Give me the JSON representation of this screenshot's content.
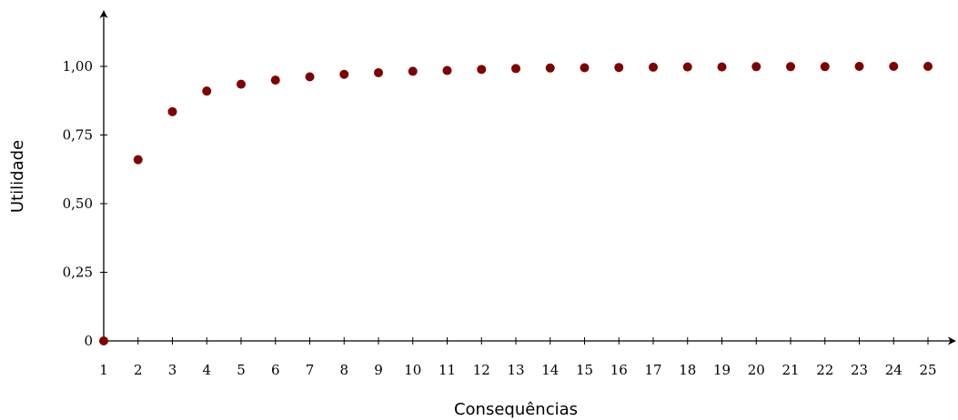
{
  "chart_data": {
    "type": "scatter",
    "title": "",
    "xlabel": "Consequências",
    "ylabel": "Utilidade",
    "x": [
      1,
      2,
      3,
      4,
      5,
      6,
      7,
      8,
      9,
      10,
      11,
      12,
      13,
      14,
      15,
      16,
      17,
      18,
      19,
      20,
      21,
      22,
      23,
      24,
      25
    ],
    "y": [
      0,
      0.66,
      0.835,
      0.91,
      0.935,
      0.95,
      0.962,
      0.971,
      0.977,
      0.982,
      0.985,
      0.989,
      0.992,
      0.994,
      0.995,
      0.996,
      0.997,
      0.998,
      0.998,
      0.999,
      0.999,
      0.999,
      1.0,
      1.0,
      1.0
    ],
    "xticks": [
      "1",
      "2",
      "3",
      "4",
      "5",
      "6",
      "7",
      "8",
      "9",
      "10",
      "11",
      "12",
      "13",
      "14",
      "15",
      "16",
      "17",
      "18",
      "19",
      "20",
      "21",
      "22",
      "23",
      "24",
      "25"
    ],
    "yticks": [
      {
        "value": 0,
        "label": "0"
      },
      {
        "value": 0.25,
        "label": "0,25"
      },
      {
        "value": 0.5,
        "label": "0,50"
      },
      {
        "value": 0.75,
        "label": "0,75"
      },
      {
        "value": 1.0,
        "label": "1,00"
      }
    ],
    "xlim": [
      1,
      25.8
    ],
    "ylim": [
      0,
      1.18
    ],
    "grid": false,
    "marker_color": "#7f0000"
  }
}
